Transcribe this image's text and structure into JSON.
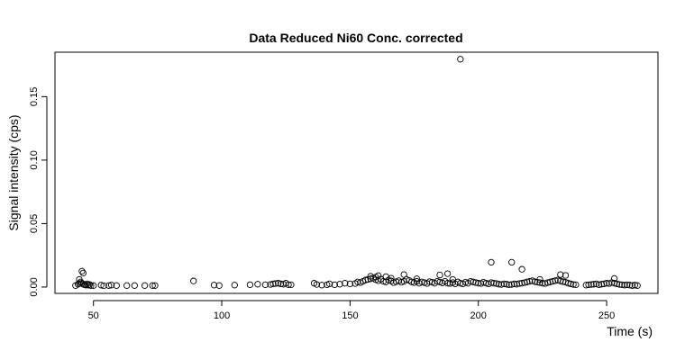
{
  "chart_data": {
    "type": "scatter",
    "title": "Data Reduced Ni60 Conc. corrected",
    "xlabel": "Time (s)",
    "ylabel": "Signal intensity (cps)",
    "xlim": [
      35,
      270
    ],
    "ylim": [
      -0.005,
      0.185
    ],
    "xticks": [
      50,
      100,
      150,
      200,
      250
    ],
    "yticks": [
      0.0,
      0.05,
      0.1,
      0.15
    ],
    "ytick_labels": [
      "0.00",
      "0.05",
      "0.10",
      "0.15"
    ],
    "grid": false,
    "series": [
      {
        "x": [
          43,
          44,
          44.5,
          45,
          45.5,
          46,
          46.5,
          47,
          47.5,
          48,
          48.5,
          49,
          50,
          53,
          54,
          56,
          57,
          59,
          63,
          66,
          70,
          73,
          74,
          89,
          97,
          99,
          105,
          111,
          114,
          117,
          119,
          120,
          121,
          122,
          123,
          124,
          125,
          126,
          127,
          136,
          137,
          139,
          141,
          142,
          144,
          146,
          148,
          150,
          152,
          153,
          154,
          155,
          156,
          157,
          158,
          159,
          160,
          161,
          162,
          163,
          164,
          165,
          166,
          167,
          168,
          169,
          170,
          171,
          172,
          173,
          174,
          175,
          176,
          177,
          178,
          179,
          180,
          181,
          182,
          183,
          184,
          185,
          186,
          187,
          188,
          189,
          190,
          191,
          192,
          193,
          194,
          195,
          196,
          197,
          198,
          199,
          200,
          201,
          202,
          203,
          204,
          205,
          206,
          207,
          208,
          209,
          210,
          211,
          212,
          213,
          214,
          215,
          216,
          217,
          218,
          219,
          220,
          221,
          222,
          223,
          224,
          225,
          226,
          227,
          228,
          229,
          230,
          231,
          232,
          233,
          234,
          235,
          236,
          237,
          238,
          242,
          243,
          244,
          245,
          246,
          247,
          248,
          249,
          250,
          251,
          252,
          253,
          254,
          255,
          256,
          257,
          258,
          259,
          260,
          261,
          262,
          45.5,
          46,
          44.5,
          158,
          161,
          164,
          171,
          185,
          188,
          205,
          213,
          232,
          234,
          253,
          217,
          190,
          160,
          166,
          176,
          224
        ],
        "y": [
          0.0012,
          0.0022,
          0.0028,
          0.004,
          0.003,
          0.0022,
          0.0018,
          0.0015,
          0.0025,
          0.0015,
          0.002,
          0.0012,
          0.0012,
          0.0015,
          0.001,
          0.0012,
          0.0015,
          0.0012,
          0.0012,
          0.0012,
          0.0012,
          0.0012,
          0.0012,
          0.0048,
          0.0015,
          0.0012,
          0.0015,
          0.0018,
          0.0022,
          0.0018,
          0.002,
          0.0025,
          0.0028,
          0.003,
          0.0025,
          0.0022,
          0.003,
          0.0018,
          0.0018,
          0.003,
          0.002,
          0.0015,
          0.0018,
          0.0025,
          0.0018,
          0.0022,
          0.003,
          0.0025,
          0.0028,
          0.004,
          0.0035,
          0.0045,
          0.0055,
          0.006,
          0.0065,
          0.007,
          0.0058,
          0.005,
          0.0062,
          0.0045,
          0.004,
          0.0055,
          0.0048,
          0.0035,
          0.0042,
          0.005,
          0.0038,
          0.0045,
          0.006,
          0.0052,
          0.004,
          0.0035,
          0.0045,
          0.003,
          0.004,
          0.0035,
          0.0028,
          0.0042,
          0.0038,
          0.003,
          0.0045,
          0.004,
          0.0032,
          0.0045,
          0.003,
          0.0028,
          0.0035,
          0.0025,
          0.004,
          0.003,
          0.0025,
          0.0038,
          0.003,
          0.0045,
          0.004,
          0.0035,
          0.003,
          0.0028,
          0.0038,
          0.003,
          0.0025,
          0.0035,
          0.003,
          0.0028,
          0.0022,
          0.002,
          0.0025,
          0.0022,
          0.0018,
          0.002,
          0.0025,
          0.0022,
          0.0028,
          0.003,
          0.0035,
          0.004,
          0.0045,
          0.005,
          0.0042,
          0.0038,
          0.0035,
          0.003,
          0.0028,
          0.0035,
          0.004,
          0.0045,
          0.005,
          0.0055,
          0.0048,
          0.0042,
          0.0038,
          0.003,
          0.0025,
          0.002,
          0.0018,
          0.0015,
          0.0018,
          0.002,
          0.0022,
          0.0025,
          0.0018,
          0.0022,
          0.0025,
          0.003,
          0.0028,
          0.0035,
          0.003,
          0.0025,
          0.002,
          0.0018,
          0.0015,
          0.0018,
          0.0015,
          0.0012,
          0.0015,
          0.0012,
          0.0125,
          0.011,
          0.006,
          0.0085,
          0.009,
          0.0082,
          0.0098,
          0.0095,
          0.0105,
          0.0195,
          0.0195,
          0.0098,
          0.0092,
          0.0068,
          0.014,
          0.006,
          0.0078,
          0.007,
          0.0065,
          0.006
        ]
      },
      {
        "x": [
          193
        ],
        "y": [
          0.1795
        ]
      }
    ]
  }
}
